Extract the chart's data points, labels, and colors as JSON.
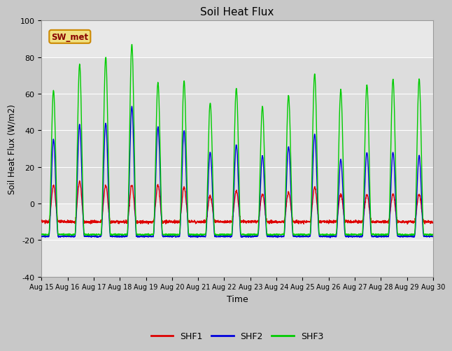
{
  "title": "Soil Heat Flux",
  "ylabel": "Soil Heat Flux (W/m2)",
  "xlabel": "Time",
  "legend_label": "SW_met",
  "series_labels": [
    "SHF1",
    "SHF2",
    "SHF3"
  ],
  "series_colors": [
    "#dd0000",
    "#0000dd",
    "#00cc00"
  ],
  "ylim": [
    -40,
    100
  ],
  "yticks": [
    -40,
    -20,
    0,
    20,
    40,
    60,
    80,
    100
  ],
  "xtick_labels": [
    "Aug 15",
    "Aug 16",
    "Aug 17",
    "Aug 18",
    "Aug 19",
    "Aug 20",
    "Aug 21",
    "Aug 22",
    "Aug 23",
    "Aug 24",
    "Aug 25",
    "Aug 26",
    "Aug 27",
    "Aug 28",
    "Aug 29",
    "Aug 30"
  ],
  "n_days": 15,
  "points_per_day": 144,
  "shf1_night": -10,
  "shf1_day_peaks": [
    10,
    12,
    10,
    10,
    10,
    9,
    4,
    7,
    5,
    6,
    9,
    5,
    5,
    5,
    5
  ],
  "shf2_night": -18,
  "shf2_day_peaks": [
    35,
    43,
    44,
    53,
    42,
    40,
    28,
    32,
    26,
    31,
    38,
    24,
    28,
    28,
    26
  ],
  "shf3_night": -17,
  "shf3_day_peaks": [
    62,
    76,
    80,
    87,
    66,
    67,
    55,
    63,
    53,
    59,
    71,
    62,
    65,
    68,
    68
  ],
  "plot_bg_color": "#e8e8e8",
  "highlight_bg_color": "#d8d8d8",
  "legend_box_facecolor": "#f0e080",
  "legend_box_edgecolor": "#cc8800",
  "legend_box_text_color": "#880000",
  "grid_color": "#ffffff",
  "line_width": 1.0,
  "fig_bg_color": "#c8c8c8"
}
